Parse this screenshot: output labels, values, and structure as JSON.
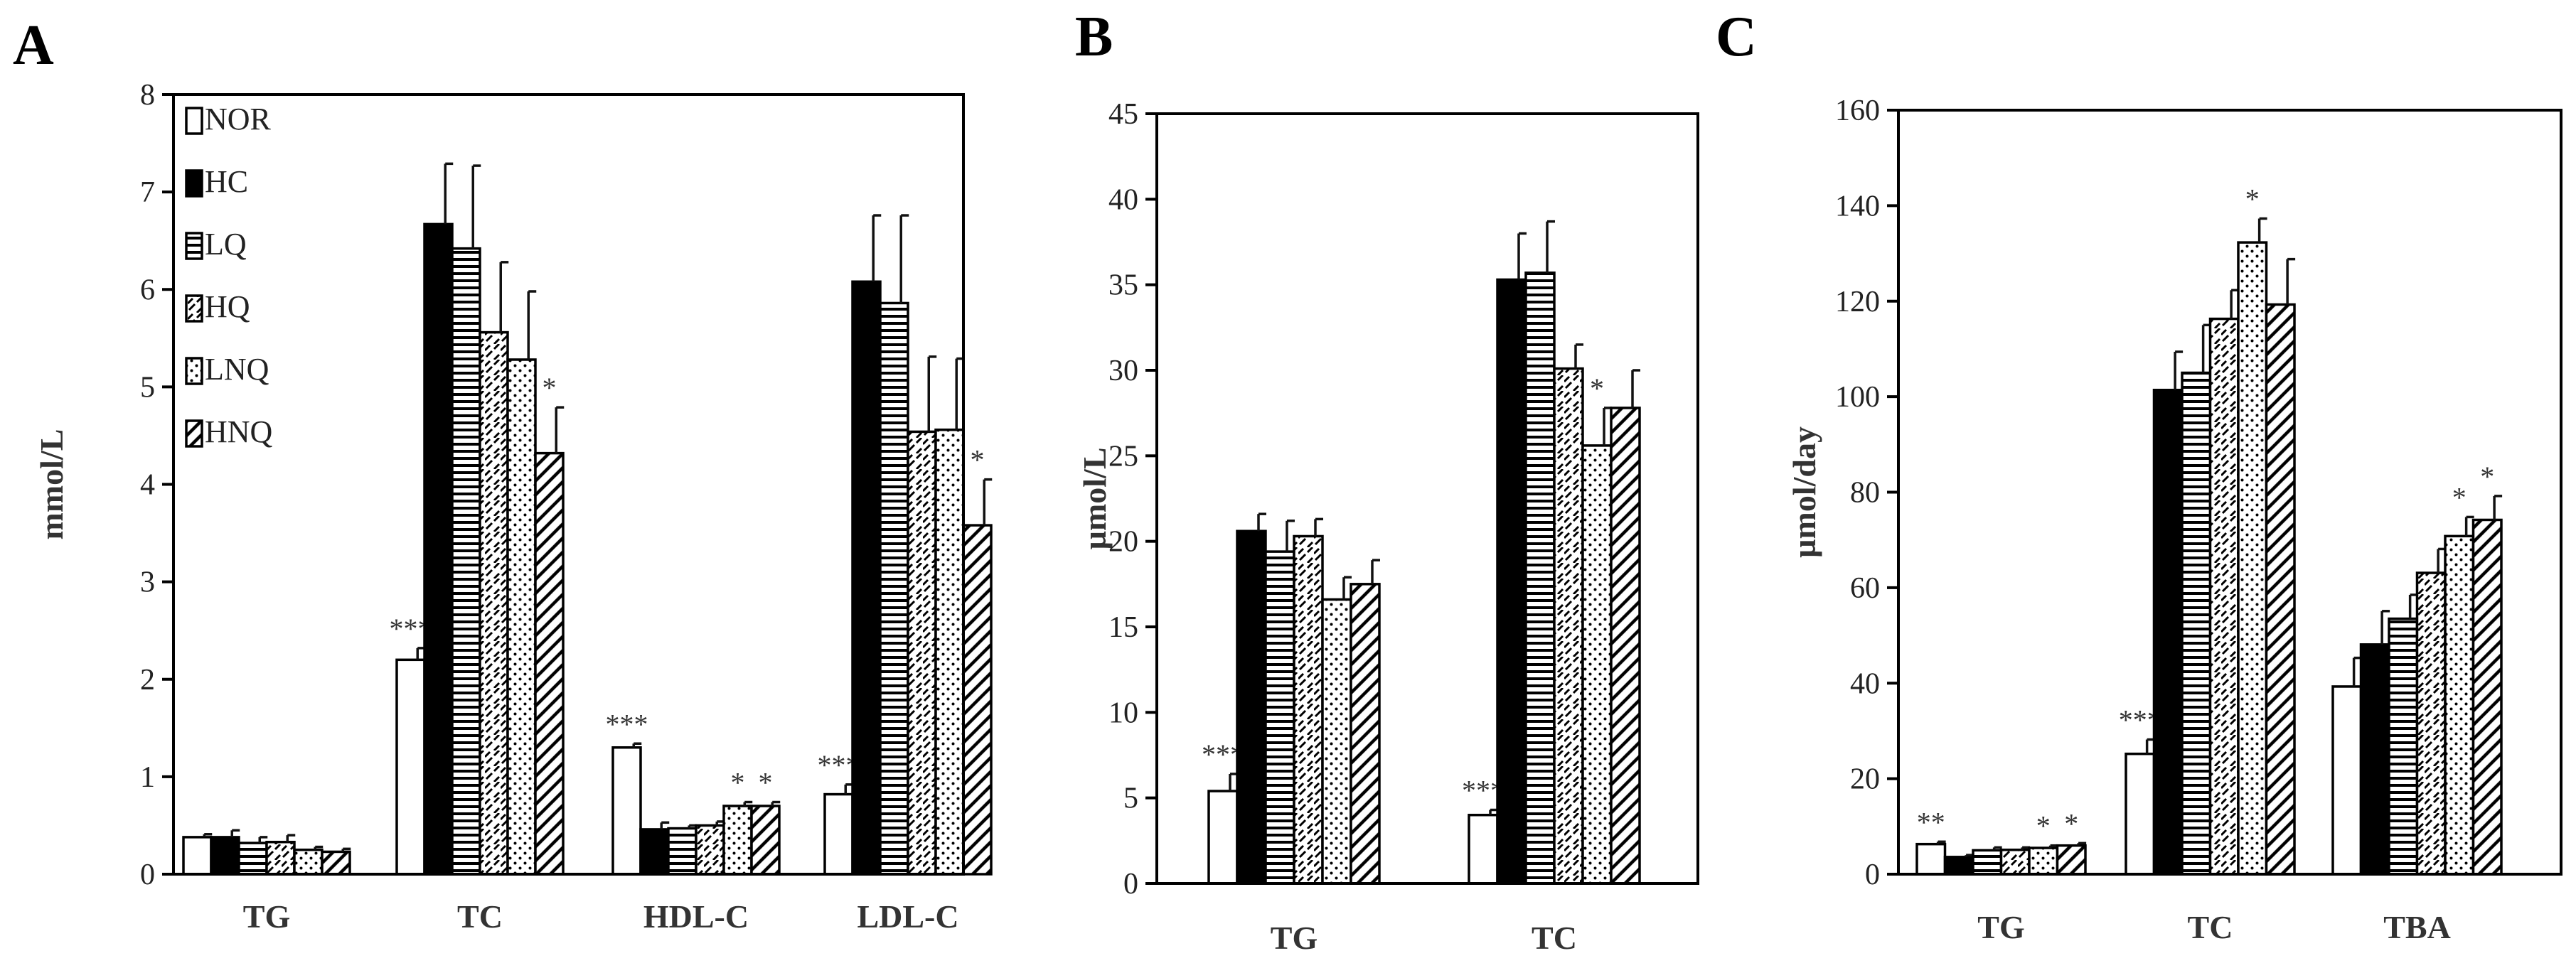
{
  "series_styles": [
    {
      "name": "NOR",
      "pattern": "white"
    },
    {
      "name": "HC",
      "pattern": "black"
    },
    {
      "name": "LQ",
      "pattern": "hlines"
    },
    {
      "name": "HQ",
      "pattern": "dashdiag"
    },
    {
      "name": "LNQ",
      "pattern": "dots"
    },
    {
      "name": "HNQ",
      "pattern": "diag"
    }
  ],
  "chart_data": [
    {
      "type": "bar",
      "panel": "A",
      "title": "",
      "xlabel": "",
      "ylabel": "mmol/L",
      "ylim": [
        0,
        8
      ],
      "yticks": [
        0,
        1,
        2,
        3,
        4,
        5,
        6,
        7,
        8
      ],
      "legend": "top-left",
      "categories": [
        "TG",
        "TC",
        "HDL-C",
        "LDL-C"
      ],
      "series": [
        {
          "name": "NOR",
          "values": [
            0.38,
            2.2,
            1.3,
            0.82
          ],
          "errors": [
            0.03,
            0.12,
            0.04,
            0.1
          ],
          "sig": [
            "",
            "***",
            "***",
            "***"
          ]
        },
        {
          "name": "HC",
          "values": [
            0.38,
            6.67,
            0.46,
            6.08
          ],
          "errors": [
            0.07,
            0.62,
            0.07,
            0.68
          ],
          "sig": [
            "",
            "",
            "",
            ""
          ]
        },
        {
          "name": "LQ",
          "values": [
            0.32,
            6.42,
            0.47,
            5.86
          ],
          "errors": [
            0.06,
            0.85,
            0.03,
            0.9
          ],
          "sig": [
            "",
            "",
            "",
            ""
          ]
        },
        {
          "name": "HQ",
          "values": [
            0.33,
            5.56,
            0.5,
            4.54
          ],
          "errors": [
            0.07,
            0.72,
            0.04,
            0.77
          ],
          "sig": [
            "",
            "",
            "",
            ""
          ]
        },
        {
          "name": "LNQ",
          "values": [
            0.25,
            5.28,
            0.7,
            4.56
          ],
          "errors": [
            0.03,
            0.7,
            0.04,
            0.73
          ],
          "sig": [
            "",
            "",
            "*",
            ""
          ]
        },
        {
          "name": "HNQ",
          "values": [
            0.23,
            4.32,
            0.7,
            3.58
          ],
          "errors": [
            0.03,
            0.47,
            0.04,
            0.47
          ],
          "sig": [
            "",
            "*",
            "*",
            "*"
          ]
        }
      ]
    },
    {
      "type": "bar",
      "panel": "B",
      "title": "",
      "xlabel": "",
      "ylabel": "µmol/L",
      "ylim": [
        0,
        45
      ],
      "yticks": [
        0,
        5,
        10,
        15,
        20,
        25,
        30,
        35,
        40,
        45
      ],
      "legend": "none",
      "categories": [
        "TG",
        "TC"
      ],
      "series": [
        {
          "name": "NOR",
          "values": [
            5.4,
            4.0
          ],
          "errors": [
            1.0,
            0.3
          ],
          "sig": [
            "***",
            "***"
          ]
        },
        {
          "name": "HC",
          "values": [
            20.6,
            35.3
          ],
          "errors": [
            1.0,
            2.7
          ],
          "sig": [
            "",
            ""
          ]
        },
        {
          "name": "LQ",
          "values": [
            19.4,
            35.7
          ],
          "errors": [
            1.8,
            3.0
          ],
          "sig": [
            "",
            ""
          ]
        },
        {
          "name": "HQ",
          "values": [
            20.3,
            30.1
          ],
          "errors": [
            1.0,
            1.4
          ],
          "sig": [
            "",
            ""
          ]
        },
        {
          "name": "LNQ",
          "values": [
            16.6,
            25.6
          ],
          "errors": [
            1.3,
            2.2
          ],
          "sig": [
            "",
            "*"
          ]
        },
        {
          "name": "HNQ",
          "values": [
            17.5,
            27.8
          ],
          "errors": [
            1.4,
            2.2
          ],
          "sig": [
            "",
            ""
          ]
        }
      ]
    },
    {
      "type": "bar",
      "panel": "C",
      "title": "",
      "xlabel": "",
      "ylabel": "µmol/day",
      "ylim": [
        0,
        160
      ],
      "yticks": [
        0,
        20,
        40,
        60,
        80,
        100,
        120,
        140,
        160
      ],
      "legend": "none",
      "categories": [
        "TG",
        "TC",
        "TBA"
      ],
      "series": [
        {
          "name": "NOR",
          "values": [
            6.3,
            25.2,
            39.3
          ],
          "errors": [
            0.5,
            3.0,
            6.0
          ],
          "sig": [
            "**",
            "***",
            ""
          ]
        },
        {
          "name": "HC",
          "values": [
            3.6,
            101.4,
            48.1
          ],
          "errors": [
            0.4,
            8.0,
            7.0
          ],
          "sig": [
            "",
            "",
            ""
          ]
        },
        {
          "name": "LQ",
          "values": [
            5.0,
            105.0,
            53.5
          ],
          "errors": [
            0.6,
            10.0,
            5.0
          ],
          "sig": [
            "",
            "",
            ""
          ]
        },
        {
          "name": "HQ",
          "values": [
            5.1,
            116.3,
            63.1
          ],
          "errors": [
            0.5,
            6.0,
            5.0
          ],
          "sig": [
            "",
            "",
            ""
          ]
        },
        {
          "name": "LNQ",
          "values": [
            5.5,
            132.3,
            70.8
          ],
          "errors": [
            0.5,
            5.0,
            4.0
          ],
          "sig": [
            "*",
            "*",
            "*"
          ]
        },
        {
          "name": "HNQ",
          "values": [
            6.0,
            119.3,
            74.2
          ],
          "errors": [
            0.5,
            9.5,
            5.0
          ],
          "sig": [
            "*",
            "",
            "*"
          ]
        }
      ]
    }
  ]
}
